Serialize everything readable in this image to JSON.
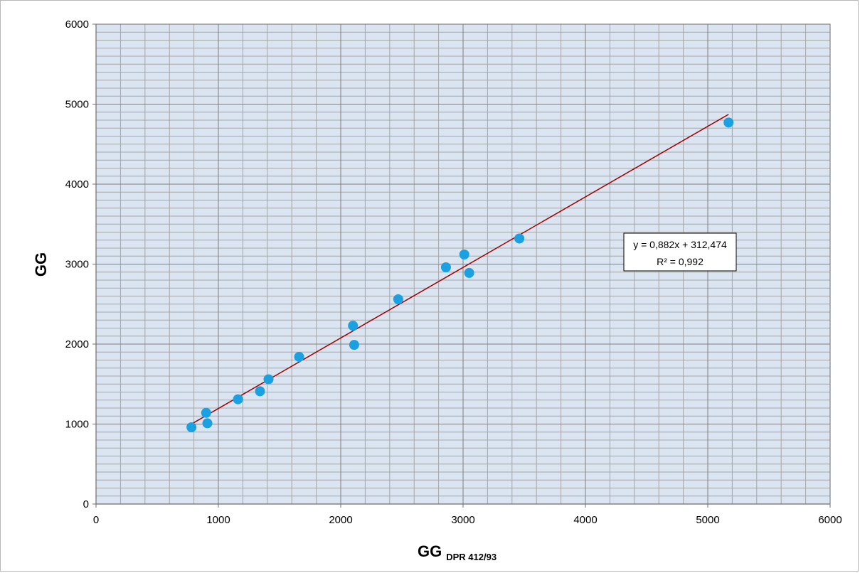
{
  "chart_data": {
    "type": "scatter",
    "xlabel": "GG",
    "xlabel_subscript": "DPR 412/93",
    "ylabel": "GG",
    "xlim": [
      0,
      6000
    ],
    "ylim": [
      0,
      6000
    ],
    "xticks": [
      "0",
      "1000",
      "2000",
      "3000",
      "4000",
      "5000",
      "6000"
    ],
    "yticks": [
      "0",
      "1000",
      "2000",
      "3000",
      "4000",
      "5000",
      "6000"
    ],
    "grid": true,
    "legend": "none",
    "series": [
      {
        "x": [
          780,
          900,
          910,
          1160,
          1340,
          1410,
          1660,
          2100,
          2110,
          2470,
          2860,
          3010,
          3050,
          3460,
          5170
        ],
        "y": [
          960,
          1140,
          1010,
          1310,
          1410,
          1560,
          1840,
          2230,
          1990,
          2560,
          2960,
          3120,
          2890,
          3320,
          4770
        ]
      }
    ],
    "trendline": {
      "type": "linear",
      "slope": 0.882,
      "intercept": 312.474,
      "x_range": [
        780,
        5170
      ],
      "equation": "y = 0,882x + 312,474",
      "r_squared": "R² = 0,992"
    },
    "colors": {
      "plot_background": "#dbe5f1",
      "grid_major": "#7f7f7f",
      "grid_minor": "#a6a6a6",
      "point": "#1ba1e2",
      "trendline": "#a00000"
    }
  }
}
